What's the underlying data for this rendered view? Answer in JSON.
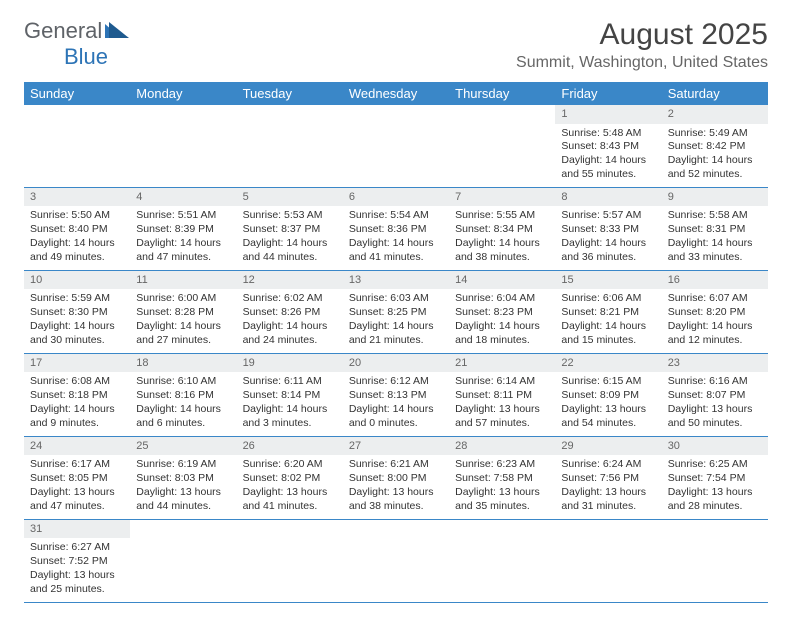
{
  "brand": {
    "part1": "General",
    "part2": "Blue"
  },
  "title": "August 2025",
  "subtitle": "Summit, Washington, United States",
  "colors": {
    "header_bg": "#3a87c8",
    "daynum_bg": "#eceeef",
    "text": "#333333",
    "page_bg": "#ffffff"
  },
  "day_headers": [
    "Sunday",
    "Monday",
    "Tuesday",
    "Wednesday",
    "Thursday",
    "Friday",
    "Saturday"
  ],
  "weeks": [
    {
      "nums": [
        "",
        "",
        "",
        "",
        "",
        "1",
        "2"
      ],
      "cells": [
        null,
        null,
        null,
        null,
        null,
        {
          "sr": "Sunrise: 5:48 AM",
          "ss": "Sunset: 8:43 PM",
          "d1": "Daylight: 14 hours",
          "d2": "and 55 minutes."
        },
        {
          "sr": "Sunrise: 5:49 AM",
          "ss": "Sunset: 8:42 PM",
          "d1": "Daylight: 14 hours",
          "d2": "and 52 minutes."
        }
      ]
    },
    {
      "nums": [
        "3",
        "4",
        "5",
        "6",
        "7",
        "8",
        "9"
      ],
      "cells": [
        {
          "sr": "Sunrise: 5:50 AM",
          "ss": "Sunset: 8:40 PM",
          "d1": "Daylight: 14 hours",
          "d2": "and 49 minutes."
        },
        {
          "sr": "Sunrise: 5:51 AM",
          "ss": "Sunset: 8:39 PM",
          "d1": "Daylight: 14 hours",
          "d2": "and 47 minutes."
        },
        {
          "sr": "Sunrise: 5:53 AM",
          "ss": "Sunset: 8:37 PM",
          "d1": "Daylight: 14 hours",
          "d2": "and 44 minutes."
        },
        {
          "sr": "Sunrise: 5:54 AM",
          "ss": "Sunset: 8:36 PM",
          "d1": "Daylight: 14 hours",
          "d2": "and 41 minutes."
        },
        {
          "sr": "Sunrise: 5:55 AM",
          "ss": "Sunset: 8:34 PM",
          "d1": "Daylight: 14 hours",
          "d2": "and 38 minutes."
        },
        {
          "sr": "Sunrise: 5:57 AM",
          "ss": "Sunset: 8:33 PM",
          "d1": "Daylight: 14 hours",
          "d2": "and 36 minutes."
        },
        {
          "sr": "Sunrise: 5:58 AM",
          "ss": "Sunset: 8:31 PM",
          "d1": "Daylight: 14 hours",
          "d2": "and 33 minutes."
        }
      ]
    },
    {
      "nums": [
        "10",
        "11",
        "12",
        "13",
        "14",
        "15",
        "16"
      ],
      "cells": [
        {
          "sr": "Sunrise: 5:59 AM",
          "ss": "Sunset: 8:30 PM",
          "d1": "Daylight: 14 hours",
          "d2": "and 30 minutes."
        },
        {
          "sr": "Sunrise: 6:00 AM",
          "ss": "Sunset: 8:28 PM",
          "d1": "Daylight: 14 hours",
          "d2": "and 27 minutes."
        },
        {
          "sr": "Sunrise: 6:02 AM",
          "ss": "Sunset: 8:26 PM",
          "d1": "Daylight: 14 hours",
          "d2": "and 24 minutes."
        },
        {
          "sr": "Sunrise: 6:03 AM",
          "ss": "Sunset: 8:25 PM",
          "d1": "Daylight: 14 hours",
          "d2": "and 21 minutes."
        },
        {
          "sr": "Sunrise: 6:04 AM",
          "ss": "Sunset: 8:23 PM",
          "d1": "Daylight: 14 hours",
          "d2": "and 18 minutes."
        },
        {
          "sr": "Sunrise: 6:06 AM",
          "ss": "Sunset: 8:21 PM",
          "d1": "Daylight: 14 hours",
          "d2": "and 15 minutes."
        },
        {
          "sr": "Sunrise: 6:07 AM",
          "ss": "Sunset: 8:20 PM",
          "d1": "Daylight: 14 hours",
          "d2": "and 12 minutes."
        }
      ]
    },
    {
      "nums": [
        "17",
        "18",
        "19",
        "20",
        "21",
        "22",
        "23"
      ],
      "cells": [
        {
          "sr": "Sunrise: 6:08 AM",
          "ss": "Sunset: 8:18 PM",
          "d1": "Daylight: 14 hours",
          "d2": "and 9 minutes."
        },
        {
          "sr": "Sunrise: 6:10 AM",
          "ss": "Sunset: 8:16 PM",
          "d1": "Daylight: 14 hours",
          "d2": "and 6 minutes."
        },
        {
          "sr": "Sunrise: 6:11 AM",
          "ss": "Sunset: 8:14 PM",
          "d1": "Daylight: 14 hours",
          "d2": "and 3 minutes."
        },
        {
          "sr": "Sunrise: 6:12 AM",
          "ss": "Sunset: 8:13 PM",
          "d1": "Daylight: 14 hours",
          "d2": "and 0 minutes."
        },
        {
          "sr": "Sunrise: 6:14 AM",
          "ss": "Sunset: 8:11 PM",
          "d1": "Daylight: 13 hours",
          "d2": "and 57 minutes."
        },
        {
          "sr": "Sunrise: 6:15 AM",
          "ss": "Sunset: 8:09 PM",
          "d1": "Daylight: 13 hours",
          "d2": "and 54 minutes."
        },
        {
          "sr": "Sunrise: 6:16 AM",
          "ss": "Sunset: 8:07 PM",
          "d1": "Daylight: 13 hours",
          "d2": "and 50 minutes."
        }
      ]
    },
    {
      "nums": [
        "24",
        "25",
        "26",
        "27",
        "28",
        "29",
        "30"
      ],
      "cells": [
        {
          "sr": "Sunrise: 6:17 AM",
          "ss": "Sunset: 8:05 PM",
          "d1": "Daylight: 13 hours",
          "d2": "and 47 minutes."
        },
        {
          "sr": "Sunrise: 6:19 AM",
          "ss": "Sunset: 8:03 PM",
          "d1": "Daylight: 13 hours",
          "d2": "and 44 minutes."
        },
        {
          "sr": "Sunrise: 6:20 AM",
          "ss": "Sunset: 8:02 PM",
          "d1": "Daylight: 13 hours",
          "d2": "and 41 minutes."
        },
        {
          "sr": "Sunrise: 6:21 AM",
          "ss": "Sunset: 8:00 PM",
          "d1": "Daylight: 13 hours",
          "d2": "and 38 minutes."
        },
        {
          "sr": "Sunrise: 6:23 AM",
          "ss": "Sunset: 7:58 PM",
          "d1": "Daylight: 13 hours",
          "d2": "and 35 minutes."
        },
        {
          "sr": "Sunrise: 6:24 AM",
          "ss": "Sunset: 7:56 PM",
          "d1": "Daylight: 13 hours",
          "d2": "and 31 minutes."
        },
        {
          "sr": "Sunrise: 6:25 AM",
          "ss": "Sunset: 7:54 PM",
          "d1": "Daylight: 13 hours",
          "d2": "and 28 minutes."
        }
      ]
    },
    {
      "nums": [
        "31",
        "",
        "",
        "",
        "",
        "",
        ""
      ],
      "cells": [
        {
          "sr": "Sunrise: 6:27 AM",
          "ss": "Sunset: 7:52 PM",
          "d1": "Daylight: 13 hours",
          "d2": "and 25 minutes."
        },
        null,
        null,
        null,
        null,
        null,
        null
      ]
    }
  ]
}
